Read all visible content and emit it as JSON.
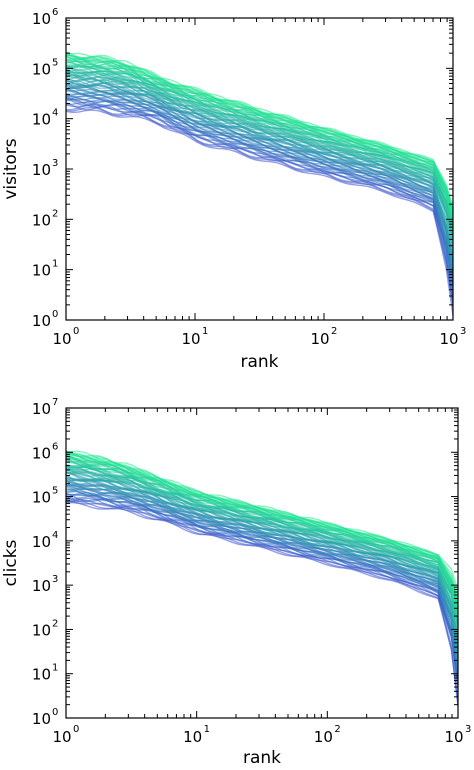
{
  "chart_data": [
    {
      "type": "line",
      "title": "",
      "xlabel": "rank",
      "ylabel": "visitors",
      "xscale": "log",
      "yscale": "log",
      "xlim": [
        1,
        1000
      ],
      "ylim": [
        1,
        1000000
      ],
      "x_tick_labels": [
        {
          "base": "10",
          "exp": "0"
        },
        {
          "base": "10",
          "exp": "1"
        },
        {
          "base": "10",
          "exp": "2"
        },
        {
          "base": "10",
          "exp": "3"
        }
      ],
      "y_tick_labels": [
        {
          "base": "10",
          "exp": "0"
        },
        {
          "base": "10",
          "exp": "1"
        },
        {
          "base": "10",
          "exp": "2"
        },
        {
          "base": "10",
          "exp": "3"
        },
        {
          "base": "10",
          "exp": "4"
        },
        {
          "base": "10",
          "exp": "5"
        },
        {
          "base": "10",
          "exp": "6"
        }
      ],
      "grid": false,
      "legend": "none",
      "color_range": [
        "#3a4fd0",
        "#20e890"
      ],
      "series_envelope": {
        "x": [
          1,
          2,
          3,
          5,
          10,
          30,
          100,
          300,
          700,
          900,
          1000
        ],
        "upper": [
          200000,
          160000,
          130000,
          70000,
          38000,
          16000,
          6500,
          3000,
          1500,
          1100,
          600
        ],
        "lower": [
          15000,
          13000,
          11000,
          8500,
          3500,
          1600,
          700,
          350,
          150,
          60,
          20
        ]
      }
    },
    {
      "type": "line",
      "title": "",
      "xlabel": "rank",
      "ylabel": "clicks",
      "xscale": "log",
      "yscale": "log",
      "xlim": [
        1,
        1000
      ],
      "ylim": [
        1,
        10000000
      ],
      "x_tick_labels": [
        {
          "base": "10",
          "exp": "0"
        },
        {
          "base": "10",
          "exp": "1"
        },
        {
          "base": "10",
          "exp": "2"
        },
        {
          "base": "10",
          "exp": "3"
        }
      ],
      "y_tick_labels": [
        {
          "base": "10",
          "exp": "0"
        },
        {
          "base": "10",
          "exp": "1"
        },
        {
          "base": "10",
          "exp": "2"
        },
        {
          "base": "10",
          "exp": "3"
        },
        {
          "base": "10",
          "exp": "4"
        },
        {
          "base": "10",
          "exp": "5"
        },
        {
          "base": "10",
          "exp": "6"
        },
        {
          "base": "10",
          "exp": "7"
        }
      ],
      "grid": false,
      "legend": "none",
      "color_range": [
        "#3a4fd0",
        "#20e890"
      ],
      "series_envelope": {
        "x": [
          1,
          2,
          3,
          5,
          10,
          30,
          100,
          300,
          700,
          900,
          1000
        ],
        "upper": [
          1100000,
          700000,
          500000,
          280000,
          130000,
          60000,
          25000,
          11000,
          5000,
          3500,
          1500
        ],
        "lower": [
          70000,
          55000,
          45000,
          30000,
          15000,
          7000,
          3000,
          1300,
          500,
          200,
          30
        ]
      }
    }
  ]
}
